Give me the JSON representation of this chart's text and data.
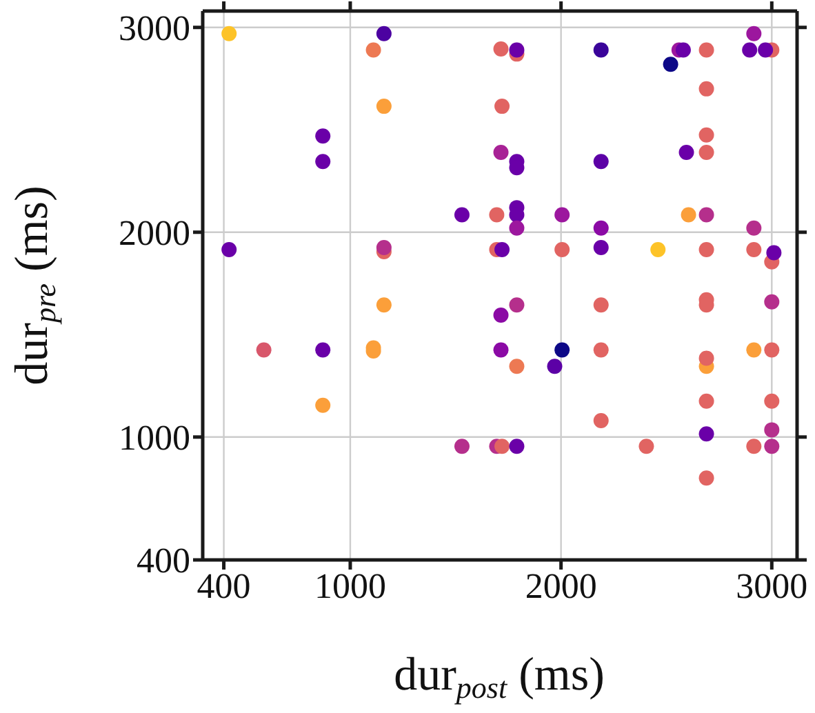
{
  "chart_data": {
    "type": "scatter",
    "xlabel": "dur$_{post}$ (ms)",
    "ylabel": "dur$_{pre}$ (ms)",
    "xlim": [
      300,
      3120
    ],
    "ylim": [
      400,
      3080
    ],
    "xticks": [
      400,
      1000,
      2000,
      3000
    ],
    "yticks": [
      400,
      1000,
      2000,
      3000
    ],
    "grid": true,
    "marker": "circle",
    "x": [
      425,
      1160,
      1110,
      1160,
      870,
      870,
      425,
      1160,
      1160,
      1160,
      590,
      870,
      1110,
      1110,
      870,
      1715,
      1790,
      1790,
      2190,
      1720,
      1715,
      1790,
      1790,
      2190,
      1530,
      1695,
      1790,
      1790,
      1790,
      2005,
      2190,
      1695,
      1720,
      2005,
      2190,
      1790,
      1715,
      2190,
      1715,
      1790,
      2005,
      1970,
      2190,
      2190,
      1530,
      1695,
      1720,
      1790,
      2915,
      2520,
      2560,
      2580,
      2690,
      2895,
      3000,
      2970,
      2690,
      2690,
      2595,
      2690,
      2605,
      2690,
      2915,
      2460,
      2690,
      2915,
      3000,
      3010,
      3000,
      2690,
      2690,
      2915,
      3000,
      2690,
      2690,
      2690,
      3000,
      2405,
      2690,
      2915,
      3000,
      3000,
      2690
    ],
    "values": [
      2970,
      2970,
      2890,
      2615,
      2470,
      2345,
      1915,
      1905,
      1925,
      1645,
      1425,
      1425,
      1435,
      1420,
      1155,
      2895,
      2870,
      2890,
      2890,
      2615,
      2390,
      2345,
      2315,
      2345,
      2085,
      2085,
      2120,
      2085,
      2020,
      2085,
      2020,
      1915,
      1915,
      1915,
      1925,
      1645,
      1595,
      1645,
      1425,
      1345,
      1425,
      1345,
      1425,
      1080,
      955,
      955,
      955,
      955,
      2970,
      2820,
      2890,
      2890,
      2890,
      2890,
      2890,
      2890,
      2700,
      2475,
      2390,
      2390,
      2085,
      2085,
      2020,
      1915,
      1915,
      1915,
      1855,
      1900,
      1660,
      1670,
      1645,
      1425,
      1425,
      1345,
      1385,
      1175,
      1175,
      955,
      1015,
      955,
      955,
      1035,
      800
    ],
    "colors": [
      "#fdc328",
      "#4c02a1",
      "#ed7953",
      "#fb9f3a",
      "#6a00a8",
      "#6a00a8",
      "#6a00a8",
      "#e16462",
      "#b52f8c",
      "#fb9f3a",
      "#d8576b",
      "#6a00a8",
      "#fb9f3a",
      "#fb9f3a",
      "#fb9f3a",
      "#e16462",
      "#e16462",
      "#6a00a8",
      "#3a049a",
      "#e16462",
      "#a82296",
      "#6a00a8",
      "#6a00a8",
      "#5c01a6",
      "#6a00a8",
      "#e16462",
      "#6a00a8",
      "#6a00a8",
      "#9c179e",
      "#9c179e",
      "#8b0aa5",
      "#e16462",
      "#6a00a8",
      "#e16462",
      "#6a00a8",
      "#b52f8c",
      "#8b0aa5",
      "#e16462",
      "#8b0aa5",
      "#ed7953",
      "#0d0887",
      "#5c01a6",
      "#e16462",
      "#e16462",
      "#b52f8c",
      "#b52f8c",
      "#e16462",
      "#6a00a8",
      "#9c179e",
      "#0d0887",
      "#9c179e",
      "#6a00a8",
      "#e16462",
      "#6a00a8",
      "#e16462",
      "#6a00a8",
      "#e16462",
      "#e16462",
      "#6a00a8",
      "#e16462",
      "#fb9f3a",
      "#b52f8c",
      "#b52f8c",
      "#fdc328",
      "#e16462",
      "#e16462",
      "#e16462",
      "#6a00a8",
      "#b52f8c",
      "#e16462",
      "#e16462",
      "#fb9f3a",
      "#e16462",
      "#fb9f3a",
      "#e16462",
      "#e16462",
      "#e16462",
      "#e16462",
      "#6a00a8",
      "#e16462",
      "#b52f8c",
      "#b52f8c",
      "#e16462"
    ]
  }
}
